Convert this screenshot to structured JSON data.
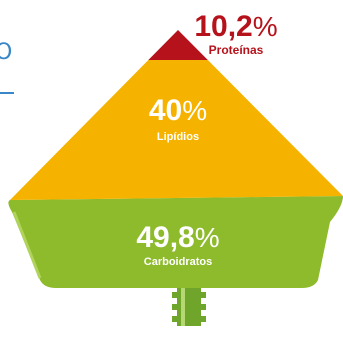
{
  "side_text": {
    "fragment": "O"
  },
  "segments": [
    {
      "value": "10,2",
      "unit": "%",
      "label": "Proteínas",
      "fraction": 0.102,
      "color": "#b5121b"
    },
    {
      "value": "40",
      "unit": "%",
      "label": "Lipídios",
      "fraction": 0.4,
      "color": "#f5b300"
    },
    {
      "value": "49,8",
      "unit": "%",
      "label": "Carboidratos",
      "fraction": 0.498,
      "color": "#8dbb2c"
    }
  ],
  "colors": {
    "label_dark": "#b5121b",
    "label_light": "#ffffff",
    "edge_light": "#b0d35c",
    "stem": "#6fa52a",
    "stem_highlight": "#b6d873",
    "accent_line": "#3a87c8"
  }
}
